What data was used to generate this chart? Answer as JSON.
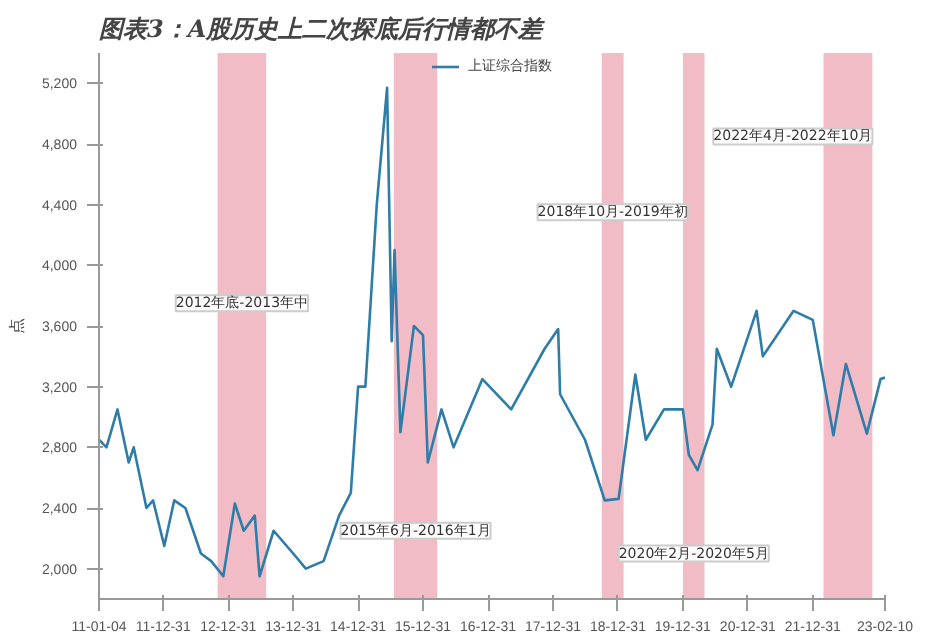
{
  "chart_data": {
    "type": "line",
    "title": "图表3：A股历史上二次探底后行情都不差",
    "ylabel": "点",
    "series": [
      {
        "name": "上证综合指数",
        "color": "#2e7ca8",
        "x": [
          "2011-01-04",
          "2011-02-15",
          "2011-04-18",
          "2011-06-20",
          "2011-07-18",
          "2011-09-28",
          "2011-11-04",
          "2012-01-06",
          "2012-03-02",
          "2012-05-04",
          "2012-07-30",
          "2012-09-26",
          "2012-12-03",
          "2013-02-06",
          "2013-03-28",
          "2013-05-29",
          "2013-06-25",
          "2013-09-12",
          "2013-12-31",
          "2014-03-12",
          "2014-06-20",
          "2014-09-15",
          "2014-11-20",
          "2014-12-31",
          "2015-02-10",
          "2015-04-15",
          "2015-06-12",
          "2015-07-08",
          "2015-07-24",
          "2015-08-26",
          "2015-11-10",
          "2015-12-31",
          "2016-01-27",
          "2016-04-13",
          "2016-06-20",
          "2016-11-29",
          "2017-05-10",
          "2017-11-14",
          "2018-01-29",
          "2018-02-09",
          "2018-06-29",
          "2018-10-18",
          "2019-01-04",
          "2019-04-08",
          "2019-06-06",
          "2019-09-16",
          "2019-12-31",
          "2020-02-03",
          "2020-03-23",
          "2020-06-15",
          "2020-07-09",
          "2020-09-28",
          "2021-02-18",
          "2021-03-25",
          "2021-09-14",
          "2021-12-31",
          "2022-04-26",
          "2022-07-05",
          "2022-10-31",
          "2023-01-16",
          "2023-02-10"
        ],
        "values": [
          2850,
          2800,
          3050,
          2700,
          2800,
          2400,
          2450,
          2150,
          2450,
          2400,
          2100,
          2050,
          1950,
          2430,
          2250,
          2350,
          1950,
          2250,
          2100,
          2000,
          2050,
          2350,
          2500,
          3200,
          3200,
          4400,
          5170,
          3500,
          4100,
          2900,
          3600,
          3540,
          2700,
          3050,
          2800,
          3250,
          3050,
          3450,
          3580,
          3150,
          2850,
          2450,
          2460,
          3280,
          2850,
          3050,
          3050,
          2750,
          2650,
          2950,
          3450,
          3200,
          3700,
          3400,
          3700,
          3640,
          2880,
          3350,
          2890,
          3250,
          3260
        ]
      }
    ],
    "bands": [
      {
        "axis": "x",
        "from": "2012-11-01",
        "to": "2013-08-01",
        "label": "2012年底-2013年中",
        "color": "#e8909e"
      },
      {
        "axis": "x",
        "from": "2015-07-20",
        "to": "2016-03-20",
        "label": "2015年6月-2016年1月",
        "color": "#e8909e"
      },
      {
        "axis": "x",
        "from": "2018-10-01",
        "to": "2019-02-01",
        "label": "2018年10月-2019年初",
        "color": "#e8909e"
      },
      {
        "axis": "x",
        "from": "2020-01-01",
        "to": "2020-05-01",
        "label": "2020年2月-2020年5月",
        "color": "#e8909e"
      },
      {
        "axis": "x",
        "from": "2022-03-01",
        "to": "2022-12-01",
        "label": "2022年4月-2022年10月",
        "color": "#e8909e"
      }
    ],
    "xlim": [
      "2011-01-04",
      "2023-02-10"
    ],
    "xticks": [
      {
        "value": "2011-01-04",
        "label": "11-01-04"
      },
      {
        "value": "2011-12-31",
        "label": "11-12-31"
      },
      {
        "value": "2012-12-31",
        "label": "12-12-31"
      },
      {
        "value": "2013-12-31",
        "label": "13-12-31"
      },
      {
        "value": "2014-12-31",
        "label": "14-12-31"
      },
      {
        "value": "2015-12-31",
        "label": "15-12-31"
      },
      {
        "value": "2016-12-31",
        "label": "16-12-31"
      },
      {
        "value": "2017-12-31",
        "label": "17-12-31"
      },
      {
        "value": "2018-12-31",
        "label": "18-12-31"
      },
      {
        "value": "2019-12-31",
        "label": "19-12-31"
      },
      {
        "value": "2020-12-31",
        "label": "20-12-31"
      },
      {
        "value": "2021-12-31",
        "label": "21-12-31"
      },
      {
        "value": "2023-02-10",
        "label": "23-02-10"
      }
    ],
    "ylim": [
      1800,
      5400
    ],
    "yticks": [
      {
        "value": 2000,
        "label": "2,000"
      },
      {
        "value": 2400,
        "label": "2,400"
      },
      {
        "value": 2800,
        "label": "2,800"
      },
      {
        "value": 3200,
        "label": "3,200"
      },
      {
        "value": 3600,
        "label": "3,600"
      },
      {
        "value": 4000,
        "label": "4,000"
      },
      {
        "value": 4400,
        "label": "4,400"
      },
      {
        "value": 4800,
        "label": "4,800"
      },
      {
        "value": 5200,
        "label": "5,200"
      }
    ],
    "grid": false,
    "legend": "top"
  }
}
